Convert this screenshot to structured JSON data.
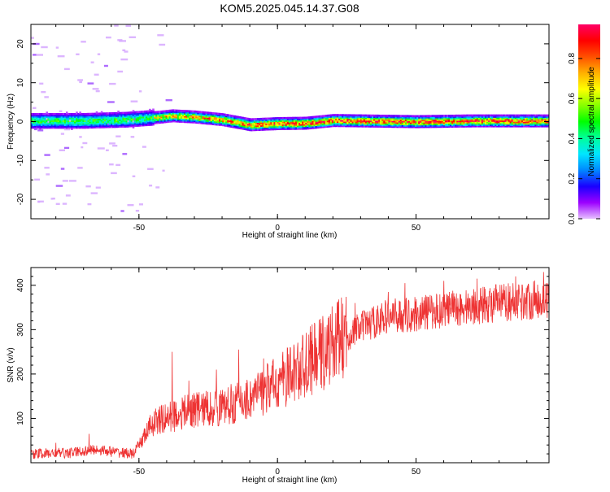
{
  "figure_title": "KOM5.2025.045.14.37.G08",
  "chart_data": [
    {
      "type": "heatmap",
      "name": "spectrogram",
      "xlabel": "Height of straight line (km)",
      "ylabel": "Frequency (Hz)",
      "xlim": [
        -89,
        98
      ],
      "ylim": [
        -25,
        25
      ],
      "x_ticks": [
        -50,
        0,
        50
      ],
      "y_ticks": [
        -20,
        -10,
        0,
        10,
        20
      ],
      "grid": false,
      "colorbar": {
        "label": "Normalized spectral amplitude",
        "range": [
          0,
          0.97
        ],
        "ticks": [
          0.0,
          0.2,
          0.4,
          0.6,
          0.8
        ],
        "tick_labels": [
          "0.0",
          "0.2",
          "0.4",
          "0.6",
          "0.8"
        ],
        "colormap": [
          "#e6c0ff",
          "#9c00ff",
          "#1a00ff",
          "#0088ff",
          "#00e6ff",
          "#00ff99",
          "#00ff00",
          "#88ff00",
          "#ffff00",
          "#ffb000",
          "#ff5000",
          "#ff0000",
          "#ff0066"
        ]
      },
      "ridge_frequency_trace": [
        {
          "x": -89,
          "f": 0.2
        },
        {
          "x": -70,
          "f": 0.2
        },
        {
          "x": -55,
          "f": 0.5
        },
        {
          "x": -45,
          "f": 1.0
        },
        {
          "x": -38,
          "f": 1.5
        },
        {
          "x": -30,
          "f": 1.2
        },
        {
          "x": -20,
          "f": 0.5
        },
        {
          "x": -10,
          "f": -0.8
        },
        {
          "x": 0,
          "f": -0.5
        },
        {
          "x": 10,
          "f": -0.4
        },
        {
          "x": 20,
          "f": 0.3
        },
        {
          "x": 30,
          "f": 0.2
        },
        {
          "x": 50,
          "f": 0.0
        },
        {
          "x": 70,
          "f": 0.2
        },
        {
          "x": 98,
          "f": 0.2
        }
      ]
    },
    {
      "type": "line",
      "name": "snr",
      "xlabel": "Height of straight line (km)",
      "ylabel": "SNR (v/v)",
      "xlim": [
        -89,
        98
      ],
      "ylim": [
        0,
        440
      ],
      "x_ticks": [
        -50,
        0,
        50
      ],
      "y_ticks": [
        100,
        200,
        300,
        400
      ],
      "grid": false,
      "color": "#ee3333",
      "trend": [
        {
          "x": -89,
          "y": 20
        },
        {
          "x": -75,
          "y": 22
        },
        {
          "x": -65,
          "y": 30
        },
        {
          "x": -60,
          "y": 25
        },
        {
          "x": -52,
          "y": 20
        },
        {
          "x": -45,
          "y": 90
        },
        {
          "x": -38,
          "y": 105
        },
        {
          "x": -30,
          "y": 120
        },
        {
          "x": -20,
          "y": 125
        },
        {
          "x": -10,
          "y": 145
        },
        {
          "x": 0,
          "y": 180
        },
        {
          "x": 10,
          "y": 220
        },
        {
          "x": 20,
          "y": 265
        },
        {
          "x": 30,
          "y": 305
        },
        {
          "x": 40,
          "y": 330
        },
        {
          "x": 50,
          "y": 335
        },
        {
          "x": 60,
          "y": 345
        },
        {
          "x": 70,
          "y": 352
        },
        {
          "x": 80,
          "y": 360
        },
        {
          "x": 98,
          "y": 370
        }
      ],
      "spikes": [
        {
          "x": -80,
          "y": 45
        },
        {
          "x": -68,
          "y": 65
        },
        {
          "x": -38,
          "y": 250
        },
        {
          "x": -32,
          "y": 185
        },
        {
          "x": -22,
          "y": 210
        },
        {
          "x": -14,
          "y": 255
        },
        {
          "x": -5,
          "y": 235
        },
        {
          "x": 4,
          "y": 245
        },
        {
          "x": 12,
          "y": 295
        },
        {
          "x": 22,
          "y": 345
        },
        {
          "x": 28,
          "y": 360
        },
        {
          "x": 40,
          "y": 385
        },
        {
          "x": 46,
          "y": 405
        },
        {
          "x": 60,
          "y": 410
        },
        {
          "x": 72,
          "y": 415
        },
        {
          "x": 86,
          "y": 420
        },
        {
          "x": 96,
          "y": 430
        }
      ]
    }
  ]
}
